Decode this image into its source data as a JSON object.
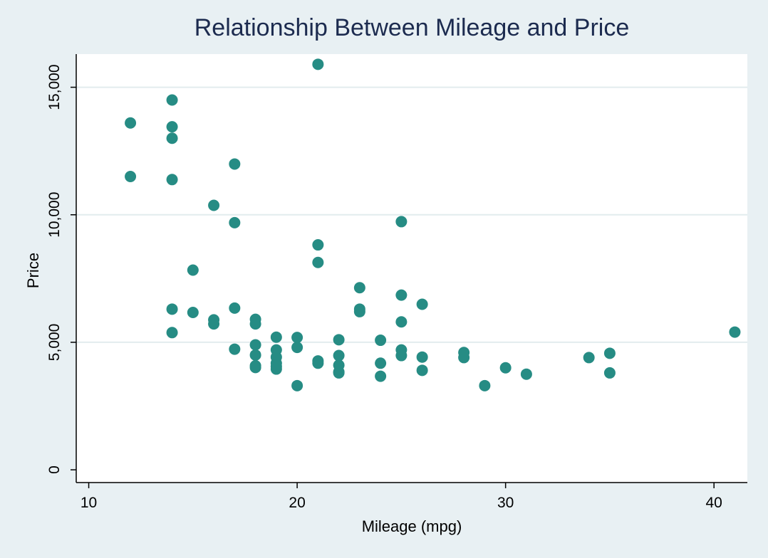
{
  "chart_data": {
    "type": "scatter",
    "title": "Relationship Between Mileage and Price",
    "xlabel": "Mileage (mpg)",
    "ylabel": "Price",
    "xlim": [
      9.4,
      41.6
    ],
    "ylim": [
      -500,
      16300
    ],
    "xticks": [
      10,
      20,
      30,
      40
    ],
    "xtick_labels": [
      "10",
      "20",
      "30",
      "40"
    ],
    "yticks": [
      0,
      5000,
      10000,
      15000
    ],
    "ytick_labels": [
      "0",
      "5,000",
      "10,000",
      "15,000"
    ],
    "grid": "horizontal",
    "legend": "none",
    "marker_color": "#268c84",
    "background": "#e8f0f3",
    "plot_background": "#ffffff",
    "grid_color": "#e2ecee",
    "title_color": "#1c2b4f",
    "points": [
      [
        12,
        13600
      ],
      [
        12,
        11500
      ],
      [
        14,
        14500
      ],
      [
        14,
        13450
      ],
      [
        14,
        13000
      ],
      [
        14,
        11380
      ],
      [
        14,
        6300
      ],
      [
        14,
        5380
      ],
      [
        15,
        7830
      ],
      [
        15,
        6170
      ],
      [
        16,
        10370
      ],
      [
        16,
        5880
      ],
      [
        16,
        5720
      ],
      [
        17,
        11990
      ],
      [
        17,
        9690
      ],
      [
        17,
        6340
      ],
      [
        17,
        4730
      ],
      [
        18,
        5900
      ],
      [
        18,
        5720
      ],
      [
        18,
        4900
      ],
      [
        18,
        4500
      ],
      [
        18,
        4080
      ],
      [
        18,
        4010
      ],
      [
        19,
        5200
      ],
      [
        19,
        4700
      ],
      [
        19,
        4420
      ],
      [
        19,
        4180
      ],
      [
        19,
        4050
      ],
      [
        19,
        3950
      ],
      [
        20,
        5190
      ],
      [
        20,
        4800
      ],
      [
        20,
        3300
      ],
      [
        21,
        15900
      ],
      [
        21,
        8820
      ],
      [
        21,
        8130
      ],
      [
        21,
        4270
      ],
      [
        21,
        4180
      ],
      [
        22,
        5100
      ],
      [
        22,
        4480
      ],
      [
        22,
        4100
      ],
      [
        22,
        3840
      ],
      [
        22,
        3800
      ],
      [
        23,
        7140
      ],
      [
        23,
        6300
      ],
      [
        23,
        6200
      ],
      [
        24,
        5080
      ],
      [
        24,
        4180
      ],
      [
        24,
        3670
      ],
      [
        25,
        9730
      ],
      [
        25,
        6850
      ],
      [
        25,
        5800
      ],
      [
        25,
        4700
      ],
      [
        25,
        4480
      ],
      [
        26,
        6490
      ],
      [
        26,
        4420
      ],
      [
        26,
        3900
      ],
      [
        28,
        4600
      ],
      [
        28,
        4400
      ],
      [
        29,
        3300
      ],
      [
        30,
        4000
      ],
      [
        31,
        3750
      ],
      [
        34,
        4400
      ],
      [
        35,
        4570
      ],
      [
        35,
        3800
      ],
      [
        41,
        5400
      ]
    ]
  }
}
